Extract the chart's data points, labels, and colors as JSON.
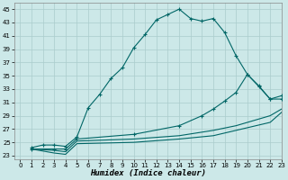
{
  "xlabel": "Humidex (Indice chaleur)",
  "bg_color": "#cce8e8",
  "grid_color": "#aacccc",
  "line_color": "#006666",
  "xlim": [
    -0.5,
    23
  ],
  "ylim": [
    22.5,
    46
  ],
  "xticks": [
    0,
    1,
    2,
    3,
    4,
    5,
    6,
    7,
    8,
    9,
    10,
    11,
    12,
    13,
    14,
    15,
    16,
    17,
    18,
    19,
    20,
    21,
    22,
    23
  ],
  "yticks": [
    23,
    25,
    27,
    29,
    31,
    33,
    35,
    37,
    39,
    41,
    43,
    45
  ],
  "line1_x": [
    1,
    2,
    3,
    4,
    5,
    6,
    7,
    8,
    9,
    10,
    11,
    12,
    13,
    14,
    15,
    16,
    17,
    18,
    19,
    20,
    21,
    22,
    23
  ],
  "line1_y": [
    24.2,
    24.6,
    24.6,
    24.4,
    25.8,
    30.2,
    32.2,
    34.6,
    36.2,
    39.2,
    41.2,
    43.4,
    44.2,
    45.0,
    43.6,
    43.2,
    43.6,
    41.5,
    38.0,
    35.2,
    33.4,
    31.5,
    31.5
  ],
  "line2_x": [
    1,
    3,
    4,
    5,
    10,
    14,
    16,
    17,
    18,
    19,
    20,
    21,
    22,
    23
  ],
  "line2_y": [
    24.0,
    24.0,
    24.0,
    25.5,
    26.2,
    27.5,
    29.0,
    30.0,
    31.2,
    32.5,
    35.2,
    33.5,
    31.5,
    32.0
  ],
  "line3_x": [
    1,
    3,
    4,
    5,
    10,
    14,
    17,
    19,
    22,
    23
  ],
  "line3_y": [
    24.0,
    23.8,
    23.6,
    25.2,
    25.5,
    26.0,
    26.8,
    27.5,
    29.0,
    30.0
  ],
  "line4_x": [
    1,
    3,
    4,
    5,
    10,
    14,
    17,
    19,
    22,
    23
  ],
  "line4_y": [
    24.0,
    23.4,
    23.2,
    24.8,
    25.0,
    25.5,
    26.0,
    26.8,
    28.0,
    29.5
  ]
}
